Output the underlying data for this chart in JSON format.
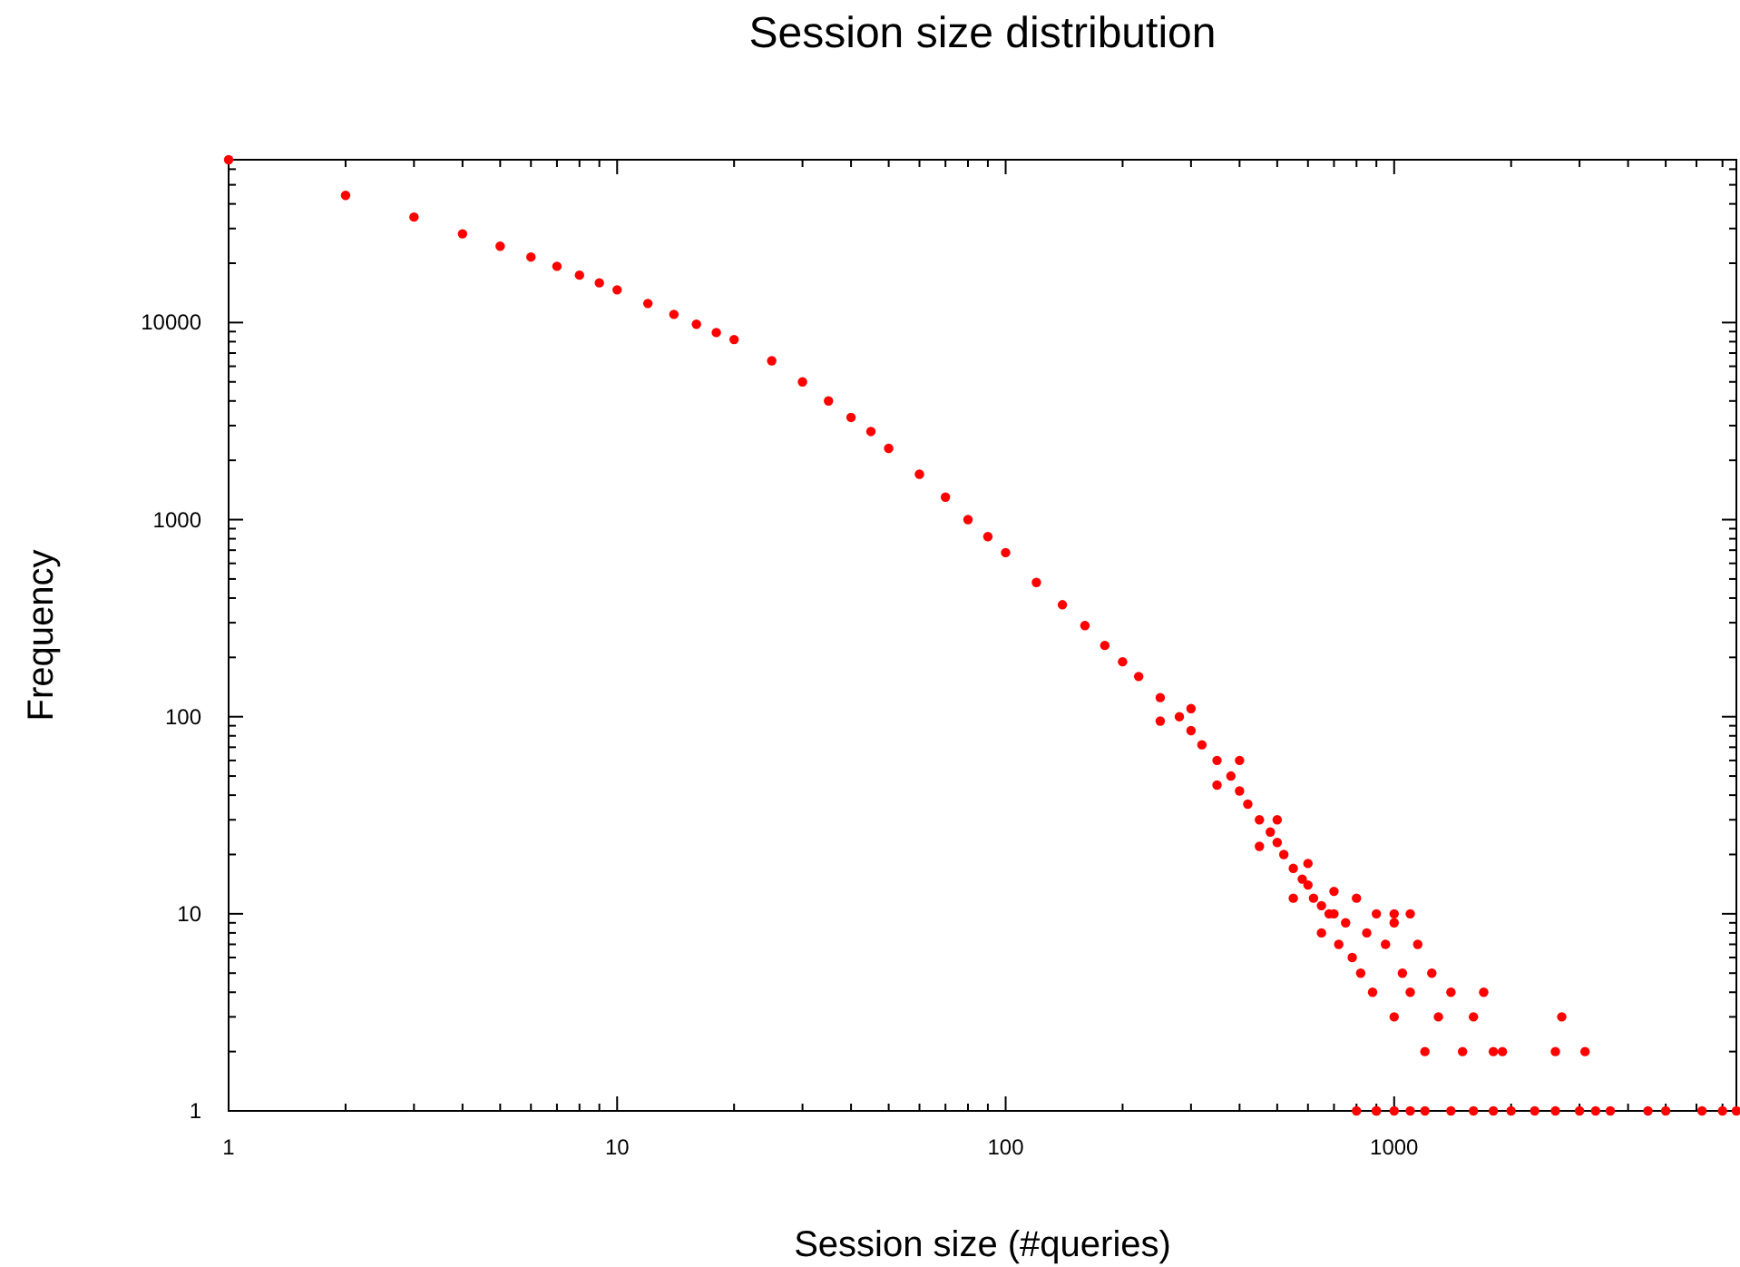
{
  "chart_data": {
    "type": "scatter",
    "title": "Session size distribution",
    "xlabel": "Session size (#queries)",
    "ylabel": "Frequency",
    "log": "xy",
    "grid": false,
    "marker": "circle",
    "xlim": [
      1,
      7600
    ],
    "ylim": [
      1,
      67000
    ],
    "xticks": [
      1,
      {
        "value": 2,
        "label": null
      },
      {
        "value": 3,
        "label": null
      },
      {
        "value": 4,
        "label": null
      },
      {
        "value": 5,
        "label": null
      },
      {
        "value": 6,
        "label": null
      },
      {
        "value": 7,
        "label": null
      },
      {
        "value": 8,
        "label": null
      },
      {
        "value": 9,
        "label": null
      },
      10,
      {
        "value": 20,
        "label": null
      },
      {
        "value": 30,
        "label": null
      },
      {
        "value": 40,
        "label": null
      },
      {
        "value": 50,
        "label": null
      },
      {
        "value": 60,
        "label": null
      },
      {
        "value": 70,
        "label": null
      },
      {
        "value": 80,
        "label": null
      },
      {
        "value": 90,
        "label": null
      },
      100,
      {
        "value": 200,
        "label": null
      },
      {
        "value": 300,
        "label": null
      },
      {
        "value": 400,
        "label": null
      },
      {
        "value": 500,
        "label": null
      },
      {
        "value": 600,
        "label": null
      },
      {
        "value": 700,
        "label": null
      },
      {
        "value": 800,
        "label": null
      },
      {
        "value": 900,
        "label": null
      },
      1000,
      {
        "value": 2000,
        "label": null
      },
      {
        "value": 3000,
        "label": null
      },
      {
        "value": 4000,
        "label": null
      },
      {
        "value": 5000,
        "label": null
      },
      {
        "value": 6000,
        "label": null
      },
      {
        "value": 7000,
        "label": null
      }
    ],
    "yticks": [
      1,
      {
        "value": 2,
        "label": null
      },
      {
        "value": 3,
        "label": null
      },
      {
        "value": 4,
        "label": null
      },
      {
        "value": 5,
        "label": null
      },
      {
        "value": 6,
        "label": null
      },
      {
        "value": 7,
        "label": null
      },
      {
        "value": 8,
        "label": null
      },
      {
        "value": 9,
        "label": null
      },
      10,
      {
        "value": 20,
        "label": null
      },
      {
        "value": 30,
        "label": null
      },
      {
        "value": 40,
        "label": null
      },
      {
        "value": 50,
        "label": null
      },
      {
        "value": 60,
        "label": null
      },
      {
        "value": 70,
        "label": null
      },
      {
        "value": 80,
        "label": null
      },
      {
        "value": 90,
        "label": null
      },
      100,
      {
        "value": 200,
        "label": null
      },
      {
        "value": 300,
        "label": null
      },
      {
        "value": 400,
        "label": null
      },
      {
        "value": 500,
        "label": null
      },
      {
        "value": 600,
        "label": null
      },
      {
        "value": 700,
        "label": null
      },
      {
        "value": 800,
        "label": null
      },
      {
        "value": 900,
        "label": null
      },
      1000,
      {
        "value": 2000,
        "label": null
      },
      {
        "value": 3000,
        "label": null
      },
      {
        "value": 4000,
        "label": null
      },
      {
        "value": 5000,
        "label": null
      },
      {
        "value": 6000,
        "label": null
      },
      {
        "value": 7000,
        "label": null
      },
      {
        "value": 8000,
        "label": null
      },
      {
        "value": 9000,
        "label": null
      },
      10000,
      {
        "value": 20000,
        "label": null
      },
      {
        "value": 30000,
        "label": null
      },
      {
        "value": 40000,
        "label": null
      },
      {
        "value": 50000,
        "label": null
      },
      {
        "value": 60000,
        "label": null
      }
    ],
    "series": [
      {
        "color": "#ff0000",
        "x": [
          1,
          2,
          3,
          4,
          5,
          6,
          7,
          8,
          9,
          10,
          12,
          14,
          16,
          18,
          20,
          25,
          30,
          35,
          40,
          45,
          50,
          60,
          70,
          80,
          90,
          100,
          120,
          140,
          160,
          180,
          200,
          220,
          250,
          280,
          300,
          320,
          350,
          380,
          400,
          420,
          450,
          480,
          500,
          520,
          550,
          580,
          600,
          620,
          650,
          680,
          700,
          250,
          300,
          350,
          400,
          450,
          500,
          550,
          600,
          650,
          700,
          720,
          750,
          780,
          800,
          820,
          850,
          880,
          900,
          950,
          1000,
          1000,
          1050,
          1100,
          1150,
          1200,
          1250,
          1300,
          1400,
          1500,
          1600,
          1700,
          1800,
          1900,
          2600,
          3100,
          2700,
          1100,
          1000,
          900,
          800,
          900,
          1000,
          1100,
          1200,
          1400,
          1600,
          1800,
          2000,
          2300,
          2600,
          3000,
          3300,
          3600,
          4500,
          5000,
          6200,
          7000,
          7600
        ],
        "values": [
          67000,
          44200,
          34300,
          28200,
          24400,
          21500,
          19300,
          17400,
          15900,
          14650,
          12500,
          11000,
          9800,
          8900,
          8200,
          6400,
          5000,
          4000,
          3300,
          2800,
          2300,
          1700,
          1300,
          1000,
          820,
          680,
          480,
          370,
          290,
          230,
          190,
          160,
          125,
          100,
          85,
          72,
          60,
          50,
          42,
          36,
          30,
          26,
          23,
          20,
          17,
          15,
          14,
          12,
          11,
          10,
          10,
          95,
          110,
          45,
          60,
          22,
          30,
          12,
          18,
          8,
          13,
          7,
          9,
          6,
          12,
          5,
          8,
          4,
          10,
          7,
          3,
          9,
          5,
          4,
          7,
          2,
          5,
          3,
          4,
          2,
          3,
          4,
          2,
          2,
          2,
          2,
          3,
          10,
          10,
          1,
          1,
          1,
          1,
          1,
          1,
          1,
          1,
          1,
          1,
          1,
          1,
          1,
          1,
          1,
          1,
          1,
          1,
          1,
          1
        ]
      }
    ]
  }
}
